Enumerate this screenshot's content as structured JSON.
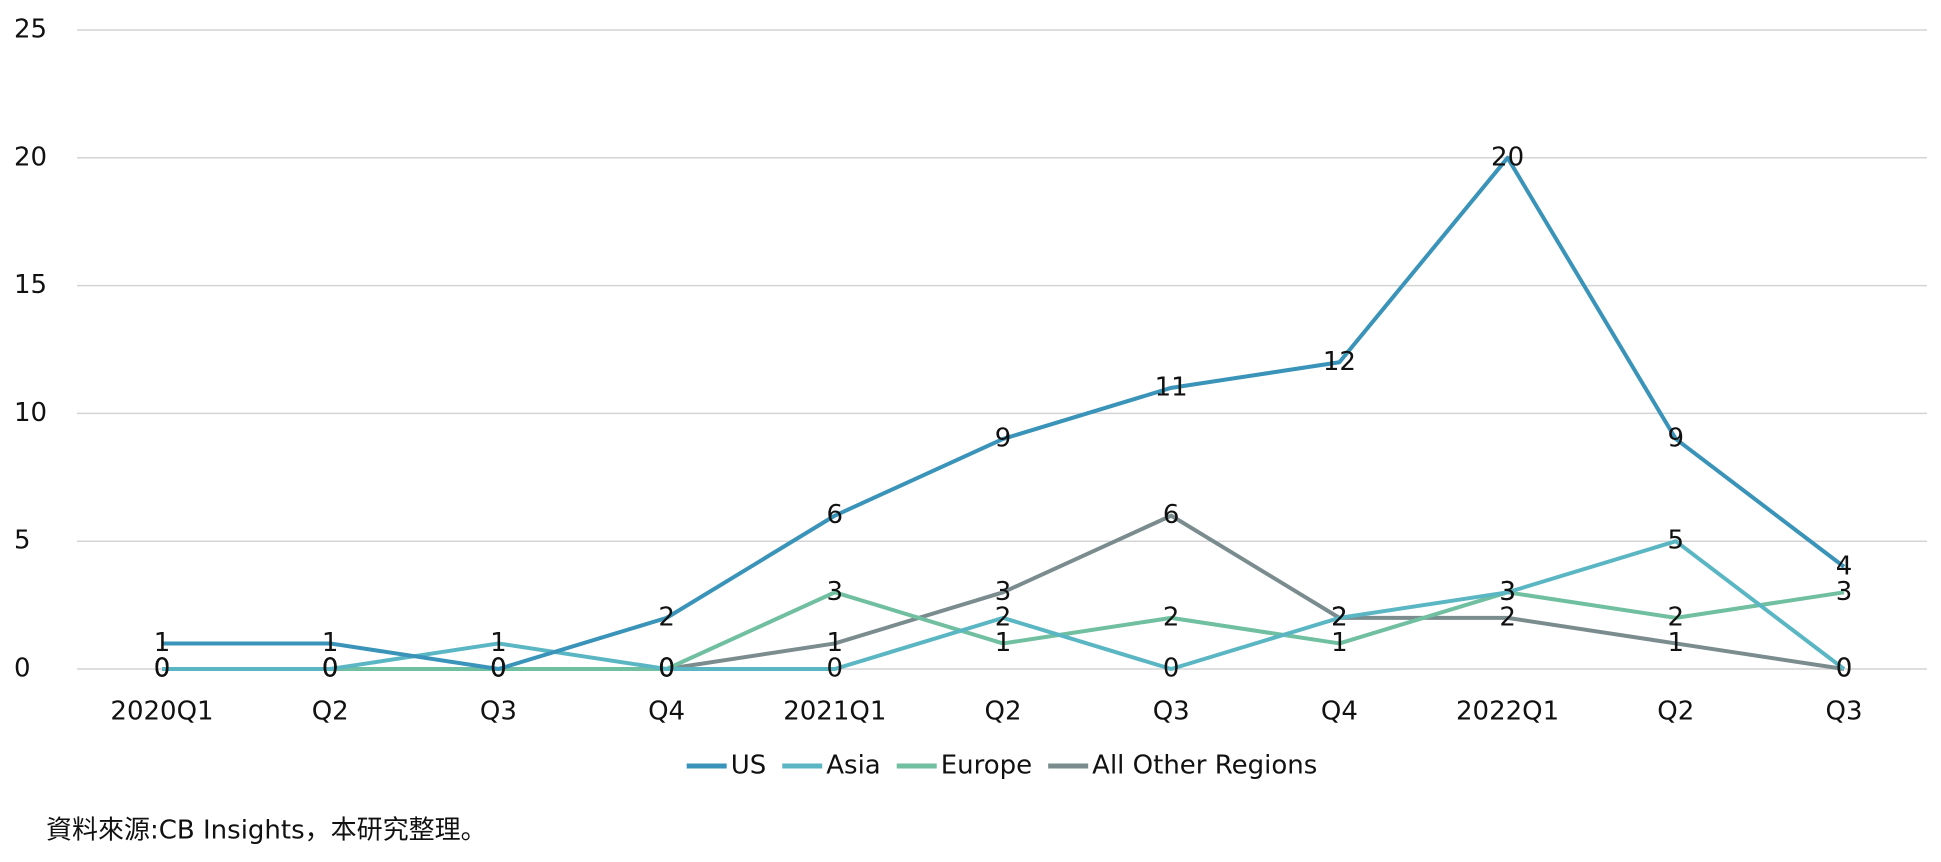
{
  "chart_data": {
    "type": "line",
    "categories": [
      "2020Q1",
      "Q2",
      "Q3",
      "Q4",
      "2021Q1",
      "Q2",
      "Q3",
      "Q4",
      "2022Q1",
      "Q2",
      "Q3"
    ],
    "series": [
      {
        "name": "US",
        "color": "#3a93b8",
        "values": [
          1,
          1,
          0,
          2,
          6,
          9,
          11,
          12,
          20,
          9,
          4
        ]
      },
      {
        "name": "Asia",
        "color": "#5bb6c4",
        "values": [
          0,
          0,
          1,
          0,
          0,
          2,
          0,
          2,
          3,
          5,
          0
        ]
      },
      {
        "name": "Europe",
        "color": "#6fbfa0",
        "values": [
          0,
          0,
          0,
          0,
          3,
          1,
          2,
          1,
          3,
          2,
          3
        ]
      },
      {
        "name": "All Other Regions",
        "color": "#7b8c8f",
        "values": [
          0,
          0,
          0,
          0,
          1,
          3,
          6,
          2,
          2,
          1,
          0
        ]
      }
    ],
    "ylim": [
      0,
      25
    ],
    "yticks": [
      0,
      5,
      10,
      15,
      20,
      25
    ],
    "grid": true,
    "legend": "bottom",
    "note": "資料來源:CB Insights，本研究整理。"
  }
}
